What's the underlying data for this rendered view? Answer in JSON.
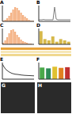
{
  "chart_data": [
    {
      "title": "A",
      "type": "histogram",
      "bins": [
        0,
        1,
        2,
        3,
        4,
        5,
        6,
        7,
        8,
        9,
        10,
        11,
        12,
        13,
        14,
        15,
        16
      ],
      "counts": [
        1,
        2,
        4,
        7,
        11,
        15,
        18,
        17,
        14,
        11,
        8,
        6,
        4,
        2,
        1,
        1
      ],
      "xlim": [
        0,
        16
      ],
      "ylim": [
        0,
        20
      ],
      "color": "#f4b183",
      "tick_labels": false
    },
    {
      "title": "B",
      "type": "line",
      "x": [
        0,
        1,
        2,
        3,
        4,
        5,
        6,
        7,
        8,
        9,
        10,
        11,
        12,
        13,
        14,
        15,
        16,
        17,
        18,
        19,
        20
      ],
      "values": [
        1,
        1,
        1,
        1.2,
        1,
        1,
        1,
        1,
        1,
        1,
        9,
        1.5,
        1,
        1,
        1,
        1,
        1,
        1,
        1,
        1,
        1
      ],
      "xlim": [
        0,
        20
      ],
      "ylim": [
        0,
        10
      ],
      "color": "#7f7f7f",
      "tick_labels": false
    },
    {
      "title": "C",
      "type": "histogram",
      "bins": [
        0,
        1,
        2,
        3,
        4,
        5,
        6,
        7,
        8,
        9,
        10,
        11,
        12,
        13,
        14,
        15,
        16
      ],
      "counts": [
        2,
        5,
        9,
        14,
        18,
        19,
        16,
        12,
        9,
        6,
        4,
        3,
        2,
        1,
        1,
        0
      ],
      "xlim": [
        0,
        16
      ],
      "ylim": [
        0,
        20
      ],
      "color": "#f4b183",
      "tick_labels": false
    },
    {
      "title": "D",
      "type": "bar",
      "categories": [
        null,
        null,
        null,
        null,
        null,
        null,
        null,
        null
      ],
      "values": [
        5,
        2,
        1.5,
        3,
        1,
        2,
        1.5,
        1
      ],
      "ylim": [
        0,
        6
      ],
      "color": "#d6b84a",
      "tick_labels": false
    },
    {
      "title": "E",
      "type": "line",
      "x": [
        0,
        1,
        2,
        3,
        4,
        5,
        6,
        7,
        8,
        9,
        10
      ],
      "values": [
        9,
        6,
        4.5,
        3.5,
        3,
        2.8,
        2.5,
        2.3,
        2.2,
        2.1,
        2
      ],
      "xlim": [
        0,
        10
      ],
      "ylim": [
        0,
        10
      ],
      "color": "#404040",
      "tick_labels": false
    },
    {
      "title": "F",
      "type": "bar",
      "categories": [
        null,
        null,
        null,
        null,
        null
      ],
      "values": [
        7,
        6.5,
        7.5,
        6.8,
        7.2
      ],
      "ylim": [
        0,
        10
      ],
      "colors": [
        "#4aa84a",
        "#2e8b57",
        "#e0c030",
        "#e08020",
        "#c03030"
      ],
      "tick_labels": false
    }
  ],
  "images": [
    {
      "label": "G"
    },
    {
      "label": "H"
    }
  ]
}
